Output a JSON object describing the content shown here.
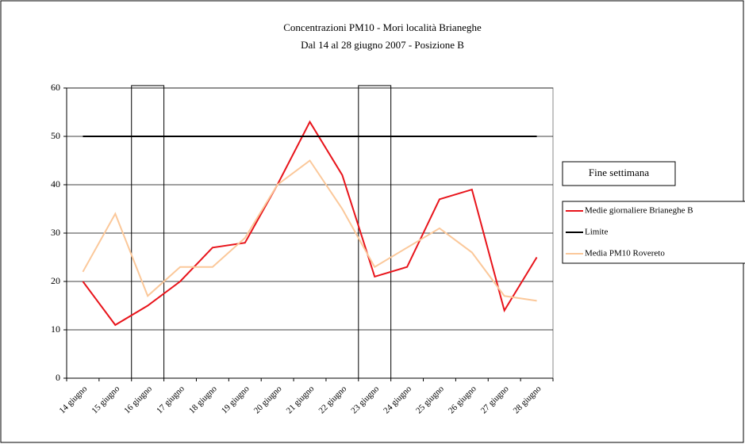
{
  "chart_data": {
    "type": "line",
    "title": "Concentrazioni PM10 - Mori località Brianeghe",
    "subtitle": "Dal 14 al 28 giugno 2007 - Posizione B",
    "categories": [
      "14 giugno",
      "15 giugno",
      "16 giugno",
      "17 giugno",
      "18 giugno",
      "19 giugno",
      "20 giugno",
      "21 giugno",
      "22 giugno",
      "23 giugno",
      "24 giugno",
      "25 giugno",
      "26 giugno",
      "27 giugno",
      "28 giugno"
    ],
    "series": [
      {
        "name": "Fine settimana",
        "type": "bar",
        "color": "#000000",
        "values": [
          null,
          null,
          60.5,
          null,
          null,
          null,
          null,
          null,
          null,
          60.5,
          null,
          null,
          null,
          null,
          null
        ]
      },
      {
        "name": "Medie giornaliere Brianeghe B",
        "color": "#e8141b",
        "values": [
          20,
          11,
          15,
          20,
          27,
          28,
          40,
          53,
          42,
          21,
          23,
          37,
          39,
          14,
          25
        ]
      },
      {
        "name": "Limite",
        "color": "#000000",
        "values": [
          50,
          50,
          50,
          50,
          50,
          50,
          50,
          50,
          50,
          50,
          50,
          50,
          50,
          50,
          50
        ]
      },
      {
        "name": "Media PM10 Rovereto",
        "color": "#fbc89a",
        "values": [
          22,
          34,
          17,
          23,
          23,
          29,
          40,
          45,
          35,
          23,
          27,
          31,
          26,
          17,
          16
        ]
      }
    ],
    "ylim": [
      0,
      60
    ],
    "yticks": [
      0,
      10,
      20,
      30,
      40,
      50,
      60
    ],
    "grid": true,
    "legend": "right"
  }
}
